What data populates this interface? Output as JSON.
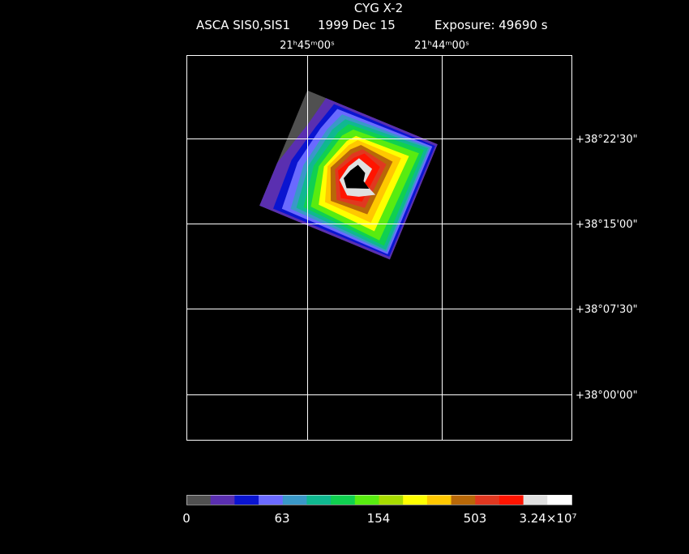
{
  "header": {
    "title": "CYG X-2",
    "instrument": "ASCA SIS0,SIS1",
    "date": "1999 Dec 15",
    "exposure": "Exposure: 49690 s"
  },
  "ra_labels": [
    "21ʰ45ᵐ00ˢ",
    "21ʰ44ᵐ00ˢ"
  ],
  "dec_labels": [
    "+38°22'30\"",
    "+38°15'00\"",
    "+38°07'30\"",
    "+38°00'00\""
  ],
  "colorbar": {
    "labels": [
      "0",
      "63",
      "154",
      "503",
      "3.24×10⁷"
    ],
    "colors": [
      "#505050",
      "#5a2fb0",
      "#0a14d0",
      "#6a6aff",
      "#3a98c8",
      "#10b890",
      "#10d050",
      "#58ec10",
      "#a8dc00",
      "#ffff00",
      "#ffc800",
      "#b86808",
      "#e03820",
      "#ff1400",
      "#e0e0e0",
      "#ffffff"
    ]
  }
}
